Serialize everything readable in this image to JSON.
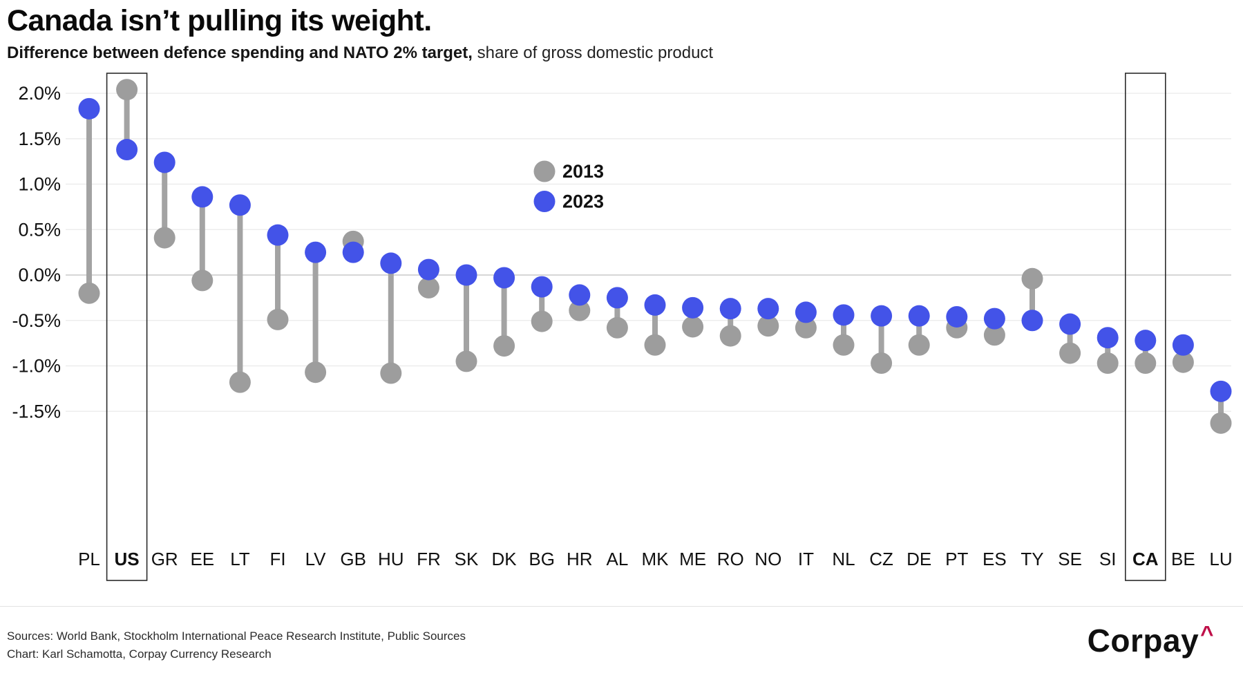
{
  "title": "Canada isn’t pulling its weight.",
  "subtitle": {
    "bold_part": "Difference between defence spending and NATO 2% target,",
    "regular_part": " share of gross domestic product"
  },
  "legend": {
    "items": [
      {
        "label": "2013",
        "color": "#9d9d9d"
      },
      {
        "label": "2023",
        "color": "#4353e8"
      }
    ]
  },
  "footer": {
    "sources_line": "Sources: World Bank, Stockholm International Peace Research Institute, Public Sources",
    "credit_line": "Chart: Karl Schamotta, Corpay Currency Research",
    "logo_text": "Corpay",
    "logo_caret": "^"
  },
  "colors": {
    "dot_2013": "#9d9d9d",
    "dot_2023": "#4353e8",
    "connector": "#a3a3a3",
    "gridline": "#ededed",
    "zero_line": "#c9c9c9",
    "highlight_box": "#2b2b2b",
    "axis_text": "#111111",
    "logo_caret": "#bf1049"
  },
  "chart_data": {
    "type": "dumbbell",
    "title": "Canada isn’t pulling its weight.",
    "subtitle": "Difference between defence spending and NATO 2% target, share of gross domestic product",
    "unit": "% of GDP difference from NATO 2% target",
    "categories": [
      "PL",
      "US",
      "GR",
      "EE",
      "LT",
      "FI",
      "LV",
      "GB",
      "HU",
      "FR",
      "SK",
      "DK",
      "BG",
      "HR",
      "AL",
      "MK",
      "ME",
      "RO",
      "NO",
      "IT",
      "NL",
      "CZ",
      "DE",
      "PT",
      "ES",
      "TY",
      "SE",
      "SI",
      "CA",
      "BE",
      "LU"
    ],
    "highlighted_categories": [
      "US",
      "CA"
    ],
    "series": [
      {
        "name": "2013",
        "values": [
          -0.2,
          2.04,
          0.41,
          -0.06,
          -1.18,
          -0.49,
          -1.07,
          0.37,
          -1.08,
          -0.14,
          -0.95,
          -0.78,
          -0.51,
          -0.39,
          -0.58,
          -0.77,
          -0.57,
          -0.67,
          -0.56,
          -0.58,
          -0.77,
          -0.97,
          -0.77,
          -0.58,
          -0.66,
          -0.04,
          -0.86,
          -0.97,
          -0.97,
          -0.96,
          -1.63
        ]
      },
      {
        "name": "2023",
        "values": [
          1.83,
          1.38,
          1.24,
          0.86,
          0.77,
          0.44,
          0.25,
          0.25,
          0.13,
          0.06,
          0.0,
          -0.03,
          -0.13,
          -0.22,
          -0.25,
          -0.33,
          -0.36,
          -0.37,
          -0.37,
          -0.41,
          -0.44,
          -0.45,
          -0.45,
          -0.46,
          -0.48,
          -0.5,
          -0.54,
          -0.69,
          -0.72,
          -0.77,
          -1.28
        ]
      }
    ],
    "y_ticks": [
      {
        "v": 2.0,
        "label": "2.0%"
      },
      {
        "v": 1.5,
        "label": "1.5%"
      },
      {
        "v": 1.0,
        "label": "1.0%"
      },
      {
        "v": 0.5,
        "label": "0.5%"
      },
      {
        "v": 0.0,
        "label": "0.0%"
      },
      {
        "v": -0.5,
        "label": "-0.5%"
      },
      {
        "v": -1.0,
        "label": "-1.0%"
      },
      {
        "v": -1.5,
        "label": "-1.5%"
      }
    ],
    "ylim": [
      -1.85,
      2.25
    ],
    "grid": true,
    "legend_position": "inside-top-center"
  }
}
